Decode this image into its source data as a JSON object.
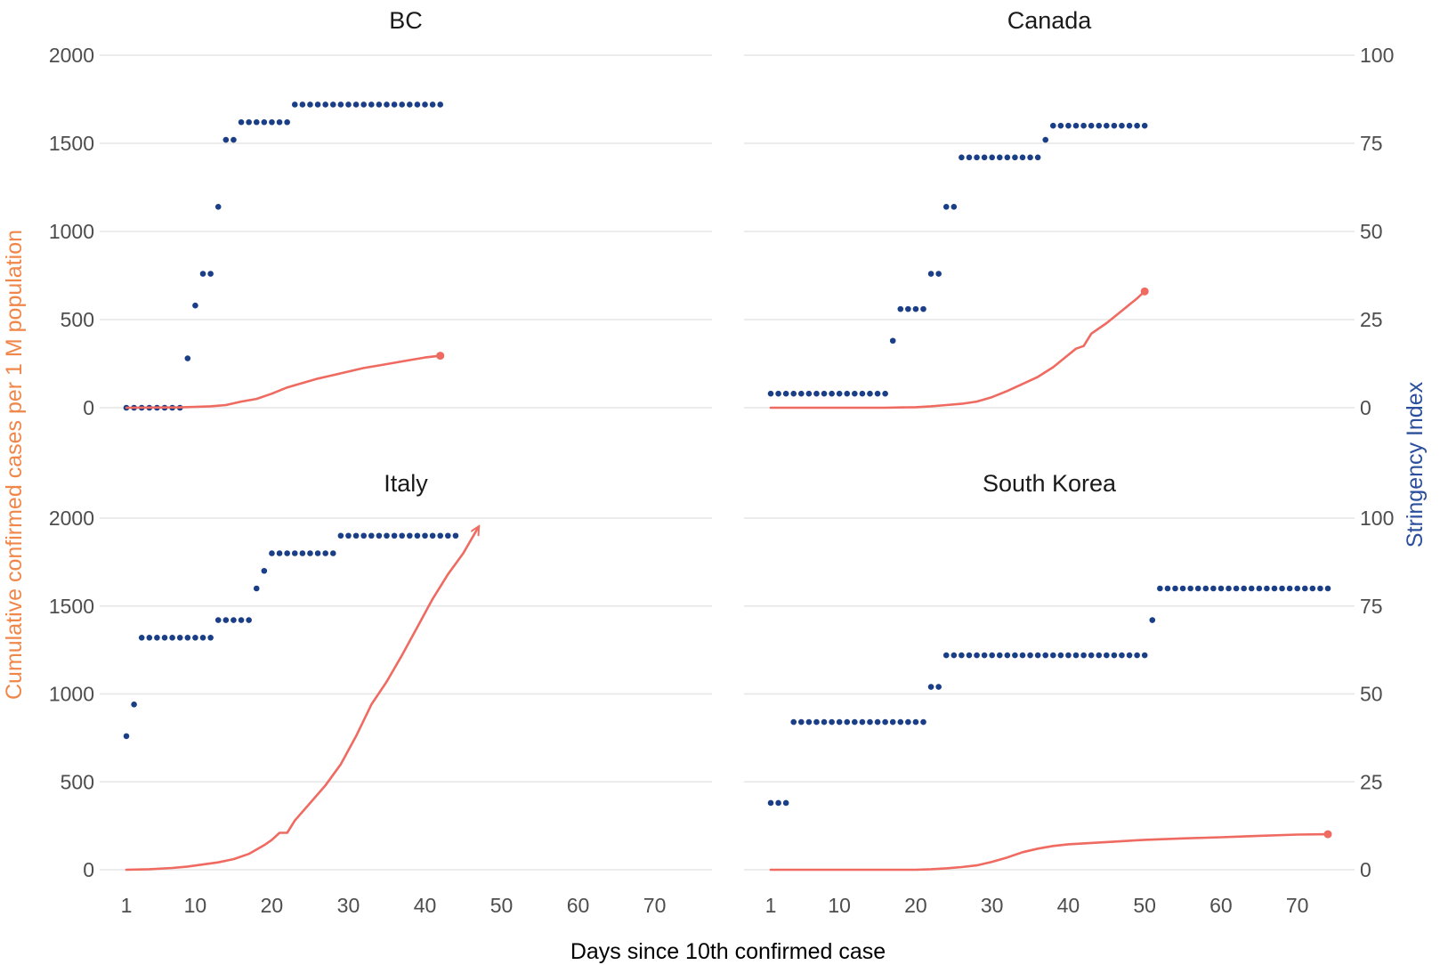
{
  "colors": {
    "cases_line": "#ef6a60",
    "stringency_points": "#1b3f87",
    "left_axis_title": "#f0874a",
    "right_axis_title": "#2b4f9c"
  },
  "labels": {
    "left_axis_title": "Cumulative confirmed cases per 1 M population",
    "right_axis_title": "Stringency Index",
    "x_axis_title": "Days since 10th confirmed case"
  },
  "chart_data": {
    "type": "line",
    "subtype": "faceted dual-axis line with point series",
    "facet_layout": "2x2",
    "xlabel": "Days since 10th confirmed case",
    "ylabel": "Cumulative confirmed cases per 1 M population",
    "y2label": "Stringency Index",
    "xlim": [
      1,
      74
    ],
    "x_ticks": [
      1,
      10,
      20,
      30,
      40,
      50,
      60,
      70
    ],
    "ylim": [
      0,
      2000
    ],
    "y_ticks": [
      0,
      500,
      1000,
      1500,
      2000
    ],
    "y2lim": [
      0,
      100
    ],
    "y2_ticks": [
      0,
      25,
      50,
      75,
      100
    ],
    "grid": true,
    "legend": "none",
    "facets": [
      {
        "title": "BC",
        "cases": [
          [
            1,
            0
          ],
          [
            8,
            2
          ],
          [
            10,
            5
          ],
          [
            12,
            8
          ],
          [
            14,
            15
          ],
          [
            16,
            35
          ],
          [
            18,
            50
          ],
          [
            20,
            80
          ],
          [
            22,
            115
          ],
          [
            24,
            140
          ],
          [
            26,
            165
          ],
          [
            28,
            185
          ],
          [
            30,
            205
          ],
          [
            32,
            225
          ],
          [
            34,
            240
          ],
          [
            36,
            255
          ],
          [
            38,
            270
          ],
          [
            40,
            285
          ],
          [
            42,
            295
          ]
        ],
        "cases_end_marker": "dot",
        "stringency": [
          [
            1,
            0
          ],
          [
            2,
            0
          ],
          [
            3,
            0
          ],
          [
            4,
            0
          ],
          [
            5,
            0
          ],
          [
            6,
            0
          ],
          [
            7,
            0
          ],
          [
            8,
            0
          ],
          [
            9,
            14
          ],
          [
            10,
            29
          ],
          [
            11,
            38
          ],
          [
            12,
            38
          ],
          [
            13,
            57
          ],
          [
            14,
            76
          ],
          [
            15,
            76
          ],
          [
            16,
            81
          ],
          [
            17,
            81
          ],
          [
            18,
            81
          ],
          [
            19,
            81
          ],
          [
            20,
            81
          ],
          [
            21,
            81
          ],
          [
            22,
            81
          ],
          [
            23,
            86
          ],
          [
            24,
            86
          ],
          [
            25,
            86
          ],
          [
            26,
            86
          ],
          [
            27,
            86
          ],
          [
            28,
            86
          ],
          [
            29,
            86
          ],
          [
            30,
            86
          ],
          [
            31,
            86
          ],
          [
            32,
            86
          ],
          [
            33,
            86
          ],
          [
            34,
            86
          ],
          [
            35,
            86
          ],
          [
            36,
            86
          ],
          [
            37,
            86
          ],
          [
            38,
            86
          ],
          [
            39,
            86
          ],
          [
            40,
            86
          ],
          [
            41,
            86
          ],
          [
            42,
            86
          ]
        ]
      },
      {
        "title": "Canada",
        "cases": [
          [
            1,
            0
          ],
          [
            10,
            0
          ],
          [
            16,
            0
          ],
          [
            20,
            3
          ],
          [
            22,
            8
          ],
          [
            24,
            15
          ],
          [
            26,
            22
          ],
          [
            28,
            35
          ],
          [
            30,
            60
          ],
          [
            32,
            95
          ],
          [
            34,
            135
          ],
          [
            36,
            175
          ],
          [
            38,
            230
          ],
          [
            40,
            300
          ],
          [
            41,
            335
          ],
          [
            42,
            350
          ],
          [
            43,
            420
          ],
          [
            45,
            480
          ],
          [
            47,
            550
          ],
          [
            49,
            620
          ],
          [
            50,
            660
          ]
        ],
        "cases_end_marker": "dot",
        "stringency": [
          [
            1,
            4
          ],
          [
            2,
            4
          ],
          [
            3,
            4
          ],
          [
            4,
            4
          ],
          [
            5,
            4
          ],
          [
            6,
            4
          ],
          [
            7,
            4
          ],
          [
            8,
            4
          ],
          [
            9,
            4
          ],
          [
            10,
            4
          ],
          [
            11,
            4
          ],
          [
            12,
            4
          ],
          [
            13,
            4
          ],
          [
            14,
            4
          ],
          [
            15,
            4
          ],
          [
            16,
            4
          ],
          [
            17,
            19
          ],
          [
            18,
            28
          ],
          [
            19,
            28
          ],
          [
            20,
            28
          ],
          [
            21,
            28
          ],
          [
            22,
            38
          ],
          [
            23,
            38
          ],
          [
            24,
            57
          ],
          [
            25,
            57
          ],
          [
            26,
            71
          ],
          [
            27,
            71
          ],
          [
            28,
            71
          ],
          [
            29,
            71
          ],
          [
            30,
            71
          ],
          [
            31,
            71
          ],
          [
            32,
            71
          ],
          [
            33,
            71
          ],
          [
            34,
            71
          ],
          [
            35,
            71
          ],
          [
            36,
            71
          ],
          [
            37,
            76
          ],
          [
            38,
            80
          ],
          [
            39,
            80
          ],
          [
            40,
            80
          ],
          [
            41,
            80
          ],
          [
            42,
            80
          ],
          [
            43,
            80
          ],
          [
            44,
            80
          ],
          [
            45,
            80
          ],
          [
            46,
            80
          ],
          [
            47,
            80
          ],
          [
            48,
            80
          ],
          [
            49,
            80
          ],
          [
            50,
            80
          ]
        ]
      },
      {
        "title": "Italy",
        "cases": [
          [
            1,
            0
          ],
          [
            4,
            3
          ],
          [
            7,
            10
          ],
          [
            9,
            18
          ],
          [
            11,
            30
          ],
          [
            13,
            42
          ],
          [
            15,
            60
          ],
          [
            17,
            90
          ],
          [
            19,
            140
          ],
          [
            20,
            170
          ],
          [
            21,
            210
          ],
          [
            22,
            210
          ],
          [
            23,
            280
          ],
          [
            25,
            380
          ],
          [
            27,
            480
          ],
          [
            29,
            600
          ],
          [
            31,
            760
          ],
          [
            33,
            940
          ],
          [
            35,
            1070
          ],
          [
            37,
            1220
          ],
          [
            39,
            1380
          ],
          [
            41,
            1540
          ],
          [
            43,
            1680
          ],
          [
            45,
            1800
          ],
          [
            47,
            1950
          ]
        ],
        "cases_end_marker": "arrow",
        "stringency": [
          [
            1,
            38
          ],
          [
            2,
            47
          ],
          [
            3,
            66
          ],
          [
            4,
            66
          ],
          [
            5,
            66
          ],
          [
            6,
            66
          ],
          [
            7,
            66
          ],
          [
            8,
            66
          ],
          [
            9,
            66
          ],
          [
            10,
            66
          ],
          [
            11,
            66
          ],
          [
            12,
            66
          ],
          [
            13,
            71
          ],
          [
            14,
            71
          ],
          [
            15,
            71
          ],
          [
            16,
            71
          ],
          [
            17,
            71
          ],
          [
            18,
            80
          ],
          [
            19,
            85
          ],
          [
            20,
            90
          ],
          [
            21,
            90
          ],
          [
            22,
            90
          ],
          [
            23,
            90
          ],
          [
            24,
            90
          ],
          [
            25,
            90
          ],
          [
            26,
            90
          ],
          [
            27,
            90
          ],
          [
            28,
            90
          ],
          [
            29,
            95
          ],
          [
            30,
            95
          ],
          [
            31,
            95
          ],
          [
            32,
            95
          ],
          [
            33,
            95
          ],
          [
            34,
            95
          ],
          [
            35,
            95
          ],
          [
            36,
            95
          ],
          [
            37,
            95
          ],
          [
            38,
            95
          ],
          [
            39,
            95
          ],
          [
            40,
            95
          ],
          [
            41,
            95
          ],
          [
            42,
            95
          ],
          [
            43,
            95
          ],
          [
            44,
            95
          ]
        ]
      },
      {
        "title": "South Korea",
        "cases": [
          [
            1,
            0
          ],
          [
            10,
            0
          ],
          [
            20,
            0
          ],
          [
            22,
            3
          ],
          [
            24,
            8
          ],
          [
            26,
            15
          ],
          [
            28,
            25
          ],
          [
            30,
            45
          ],
          [
            32,
            70
          ],
          [
            34,
            100
          ],
          [
            36,
            120
          ],
          [
            38,
            135
          ],
          [
            40,
            145
          ],
          [
            42,
            150
          ],
          [
            44,
            155
          ],
          [
            46,
            160
          ],
          [
            50,
            170
          ],
          [
            55,
            178
          ],
          [
            60,
            185
          ],
          [
            65,
            193
          ],
          [
            70,
            200
          ],
          [
            74,
            202
          ]
        ],
        "cases_end_marker": "dot",
        "stringency": [
          [
            1,
            19
          ],
          [
            2,
            19
          ],
          [
            3,
            19
          ],
          [
            4,
            42
          ],
          [
            5,
            42
          ],
          [
            6,
            42
          ],
          [
            7,
            42
          ],
          [
            8,
            42
          ],
          [
            9,
            42
          ],
          [
            10,
            42
          ],
          [
            11,
            42
          ],
          [
            12,
            42
          ],
          [
            13,
            42
          ],
          [
            14,
            42
          ],
          [
            15,
            42
          ],
          [
            16,
            42
          ],
          [
            17,
            42
          ],
          [
            18,
            42
          ],
          [
            19,
            42
          ],
          [
            20,
            42
          ],
          [
            21,
            42
          ],
          [
            22,
            52
          ],
          [
            23,
            52
          ],
          [
            24,
            61
          ],
          [
            25,
            61
          ],
          [
            26,
            61
          ],
          [
            27,
            61
          ],
          [
            28,
            61
          ],
          [
            29,
            61
          ],
          [
            30,
            61
          ],
          [
            31,
            61
          ],
          [
            32,
            61
          ],
          [
            33,
            61
          ],
          [
            34,
            61
          ],
          [
            35,
            61
          ],
          [
            36,
            61
          ],
          [
            37,
            61
          ],
          [
            38,
            61
          ],
          [
            39,
            61
          ],
          [
            40,
            61
          ],
          [
            41,
            61
          ],
          [
            42,
            61
          ],
          [
            43,
            61
          ],
          [
            44,
            61
          ],
          [
            45,
            61
          ],
          [
            46,
            61
          ],
          [
            47,
            61
          ],
          [
            48,
            61
          ],
          [
            49,
            61
          ],
          [
            50,
            61
          ],
          [
            51,
            71
          ],
          [
            52,
            80
          ],
          [
            53,
            80
          ],
          [
            54,
            80
          ],
          [
            55,
            80
          ],
          [
            56,
            80
          ],
          [
            57,
            80
          ],
          [
            58,
            80
          ],
          [
            59,
            80
          ],
          [
            60,
            80
          ],
          [
            61,
            80
          ],
          [
            62,
            80
          ],
          [
            63,
            80
          ],
          [
            64,
            80
          ],
          [
            65,
            80
          ],
          [
            66,
            80
          ],
          [
            67,
            80
          ],
          [
            68,
            80
          ],
          [
            69,
            80
          ],
          [
            70,
            80
          ],
          [
            71,
            80
          ],
          [
            72,
            80
          ],
          [
            73,
            80
          ],
          [
            74,
            80
          ]
        ]
      }
    ]
  }
}
